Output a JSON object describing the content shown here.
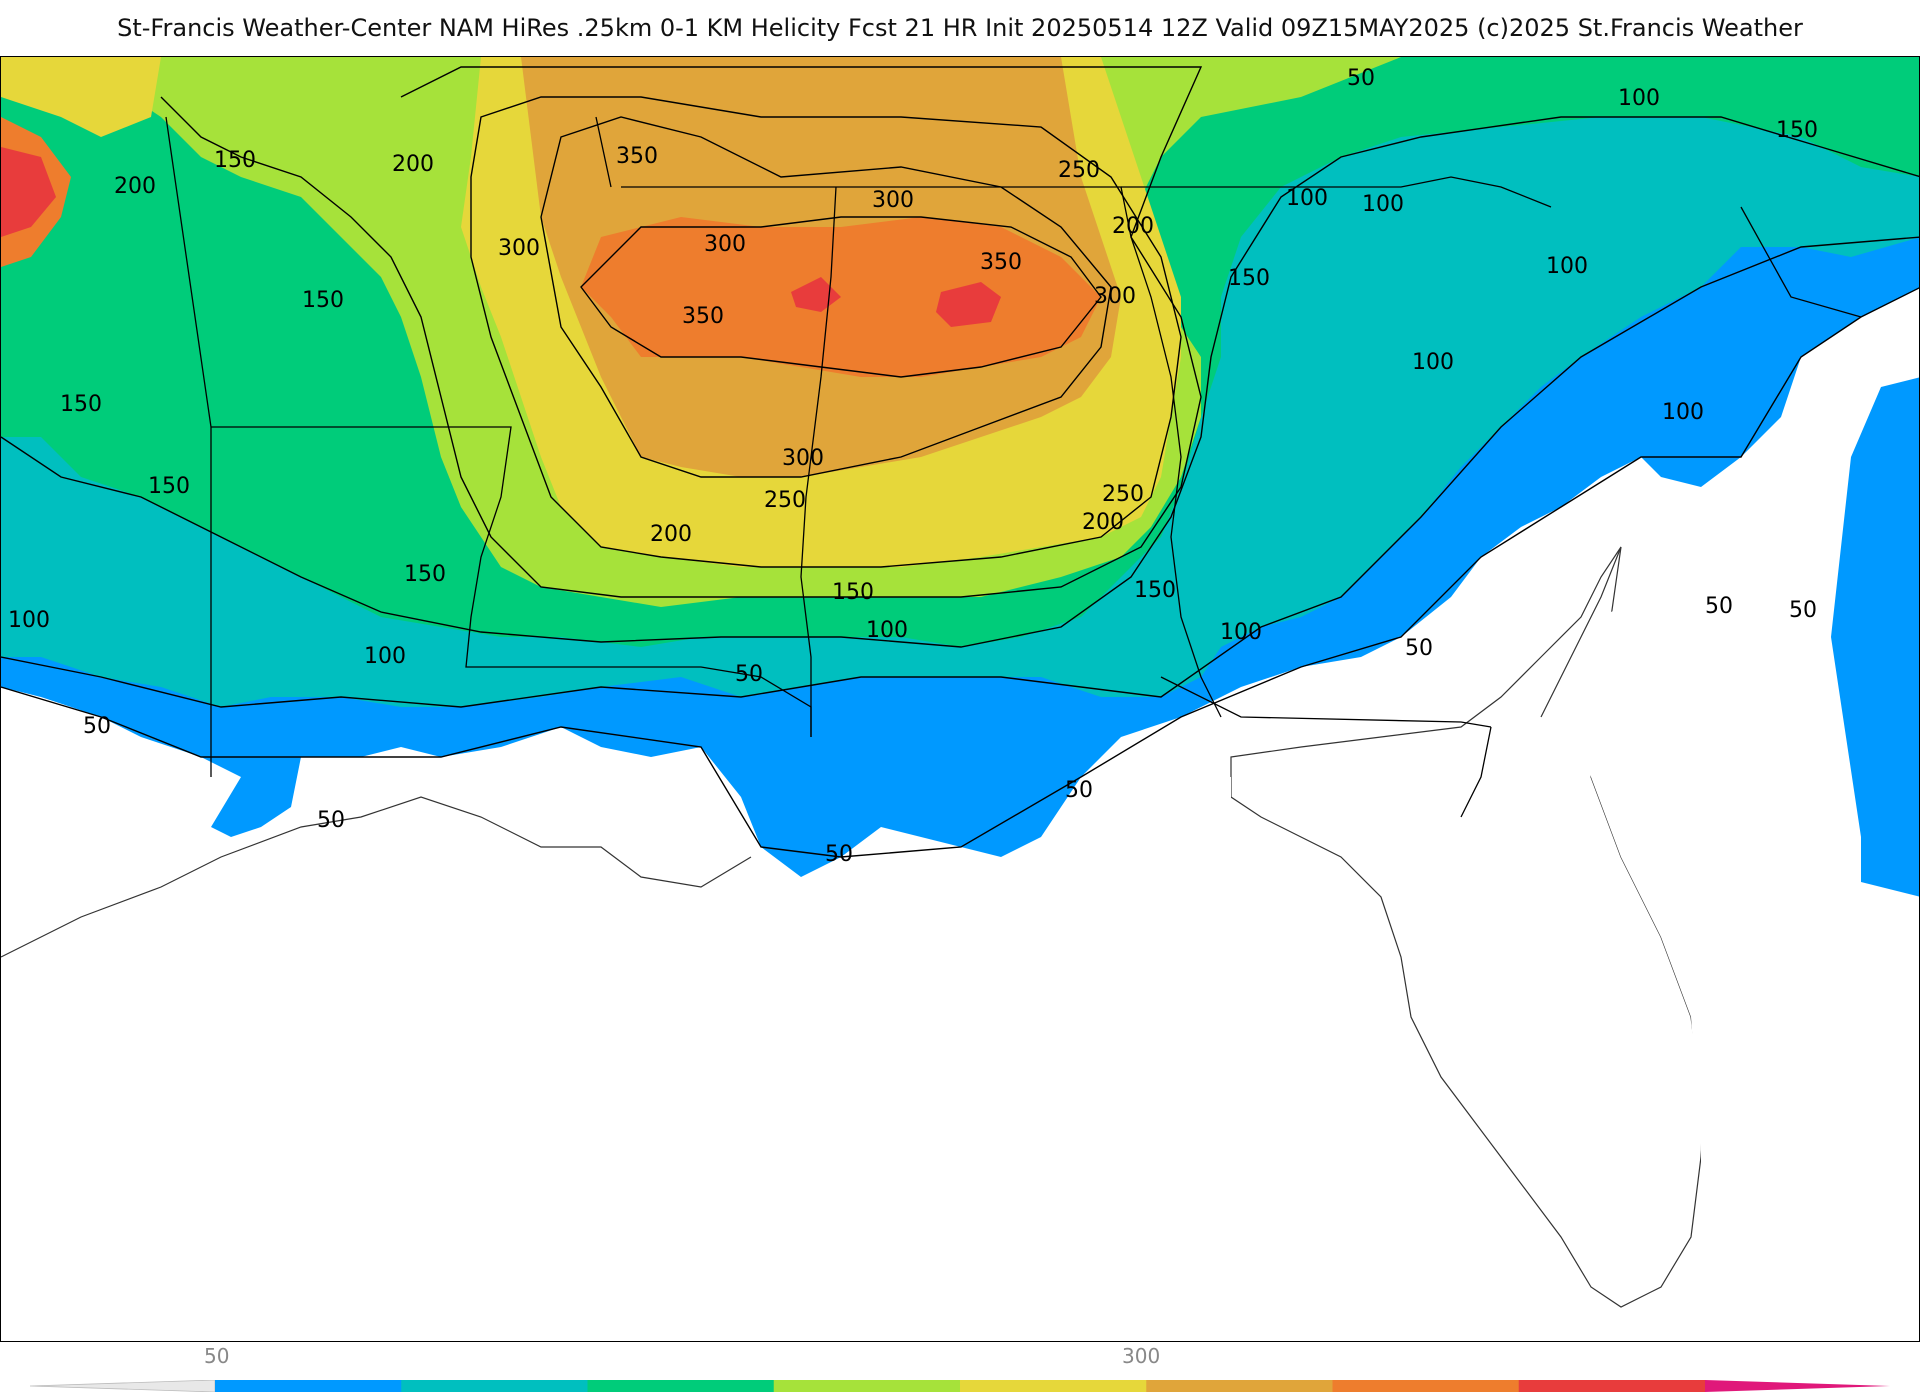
{
  "title": "St-Francis Weather-Center NAM HiRes .25km 0-1 KM Helicity Fcst 21 HR Init 20250514 12Z  Valid 09Z15MAY2025    (c)2025 St.Francis Weather",
  "map": {
    "palette": [
      "#0099ff",
      "#00bfbf",
      "#00cc7a",
      "#a6e23a",
      "#e6d73a",
      "#e0a53a",
      "#ee7d2d",
      "#e83c3c",
      "#e0187a"
    ],
    "contour_labels": [
      {
        "text": "50",
        "id": "ne-a"
      },
      {
        "text": "100",
        "id": "ne-b"
      },
      {
        "text": "150",
        "id": "ne-c"
      },
      {
        "text": "150",
        "id": "w-a"
      },
      {
        "text": "200",
        "id": "w-b"
      },
      {
        "text": "200",
        "id": "w-c"
      },
      {
        "text": "150",
        "id": "w-d"
      },
      {
        "text": "150",
        "id": "w-e"
      },
      {
        "text": "150",
        "id": "w-f"
      },
      {
        "text": "100",
        "id": "w-g"
      },
      {
        "text": "150",
        "id": "w-h"
      },
      {
        "text": "100",
        "id": "w-i"
      },
      {
        "text": "50",
        "id": "w-j"
      },
      {
        "text": "50",
        "id": "w-k"
      },
      {
        "text": "350",
        "id": "c-a"
      },
      {
        "text": "300",
        "id": "c-b"
      },
      {
        "text": "300",
        "id": "c-c"
      },
      {
        "text": "300",
        "id": "c-d"
      },
      {
        "text": "350",
        "id": "c-e"
      },
      {
        "text": "350",
        "id": "c-f"
      },
      {
        "text": "300",
        "id": "c-g"
      },
      {
        "text": "250",
        "id": "c-h"
      },
      {
        "text": "200",
        "id": "c-i"
      },
      {
        "text": "300",
        "id": "c-j"
      },
      {
        "text": "250",
        "id": "c-k"
      },
      {
        "text": "200",
        "id": "c-l"
      },
      {
        "text": "250",
        "id": "c-m"
      },
      {
        "text": "200",
        "id": "c-n"
      },
      {
        "text": "150",
        "id": "c-o"
      },
      {
        "text": "150",
        "id": "c-p"
      },
      {
        "text": "100",
        "id": "c-q"
      },
      {
        "text": "100",
        "id": "c-r"
      },
      {
        "text": "50",
        "id": "c-s"
      },
      {
        "text": "50",
        "id": "c-t"
      },
      {
        "text": "50",
        "id": "c-u"
      },
      {
        "text": "150",
        "id": "e-a"
      },
      {
        "text": "100",
        "id": "e-b"
      },
      {
        "text": "100",
        "id": "e-c"
      },
      {
        "text": "100",
        "id": "e-d"
      },
      {
        "text": "100",
        "id": "e-e"
      },
      {
        "text": "100",
        "id": "e-f"
      },
      {
        "text": "50",
        "id": "e-g"
      },
      {
        "text": "50",
        "id": "e-h"
      },
      {
        "text": "50",
        "id": "e-i"
      }
    ]
  },
  "colorbar": {
    "tick_labels": [
      "50",
      "300"
    ],
    "colors": [
      "#0099ff",
      "#00bfbf",
      "#00cc7a",
      "#a6e23a",
      "#e6d73a",
      "#e0a53a",
      "#ee7d2d",
      "#e83c3c",
      "#e0187a"
    ]
  }
}
